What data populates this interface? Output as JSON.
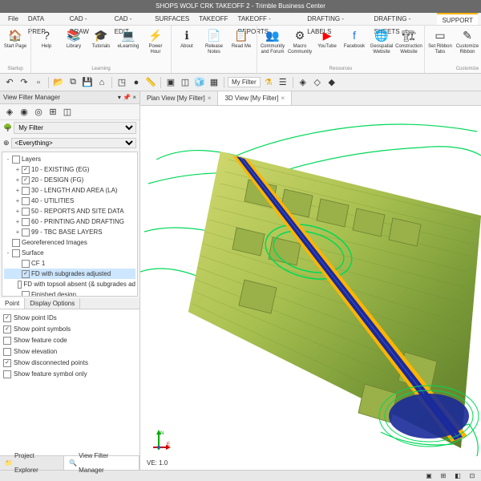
{
  "window": {
    "title": "SHOPS WOLF CRK TAKEOFF 2 - Trimble Business Center"
  },
  "menu": {
    "items": [
      "File",
      "DATA PREP",
      "CAD - DRAW",
      "CAD - EDIT",
      "SURFACES",
      "TAKEOFF",
      "TAKEOFF - REPORTS",
      "DRAFTING - LABELS",
      "DRAFTING - SHEETS",
      "SUPPORT"
    ],
    "active": 9
  },
  "ribbon": {
    "groups": [
      {
        "name": "Startup",
        "buttons": [
          {
            "label": "Start Page",
            "icon": "🏠"
          }
        ]
      },
      {
        "name": "Learning",
        "buttons": [
          {
            "label": "Help",
            "icon": "?"
          },
          {
            "label": "Library",
            "icon": "📚"
          },
          {
            "label": "Tutorials",
            "icon": "🎓"
          },
          {
            "label": "eLearning",
            "icon": "💻"
          },
          {
            "label": "Power Hour",
            "icon": "⚡"
          }
        ]
      },
      {
        "name": "",
        "buttons": [
          {
            "label": "About",
            "icon": "ℹ"
          },
          {
            "label": "Release Notes",
            "icon": "📄"
          },
          {
            "label": "Read Me",
            "icon": "📋"
          }
        ]
      },
      {
        "name": "Resources",
        "buttons": [
          {
            "label": "Community and Forum",
            "icon": "👥"
          },
          {
            "label": "Macro Community",
            "icon": "⚙"
          },
          {
            "label": "YouTube",
            "icon": "▶",
            "cls": "yt"
          },
          {
            "label": "Facebook",
            "icon": "f",
            "cls": "fb"
          },
          {
            "label": "Geospatial Website",
            "icon": "🌐"
          },
          {
            "label": "Construction Website",
            "icon": "🏗"
          }
        ]
      },
      {
        "name": "Customize",
        "buttons": [
          {
            "label": "Set Ribbon Tabs",
            "icon": "▭"
          },
          {
            "label": "Customize Ribbon",
            "icon": "✎"
          },
          {
            "label": "Defi",
            "icon": "▭"
          }
        ]
      }
    ]
  },
  "toolbar": {
    "filter_label": "My Filter"
  },
  "panel": {
    "title": "View Filter Manager",
    "filter_sel": "My Filter",
    "everything": "<Everything>",
    "tree": [
      {
        "label": "Layers",
        "checked": false,
        "indent": 0,
        "exp": "-"
      },
      {
        "label": "10 - EXISTING (EG)",
        "checked": true,
        "indent": 1,
        "exp": "+"
      },
      {
        "label": "20 - DESIGN (FG)",
        "checked": true,
        "indent": 1,
        "exp": "+"
      },
      {
        "label": "30 - LENGTH AND AREA (LA)",
        "checked": false,
        "indent": 1,
        "exp": "+"
      },
      {
        "label": "40 - UTILITIES",
        "checked": false,
        "indent": 1,
        "exp": "+"
      },
      {
        "label": "50 - REPORTS AND SITE DATA",
        "checked": false,
        "indent": 1,
        "exp": "+"
      },
      {
        "label": "60 - PRINTING AND DRAFTING",
        "checked": false,
        "indent": 1,
        "exp": "+"
      },
      {
        "label": "99 - TBC BASE LAYERS",
        "checked": false,
        "indent": 1,
        "exp": "+"
      },
      {
        "label": "Georeferenced Images",
        "checked": false,
        "indent": 0,
        "exp": ""
      },
      {
        "label": "Surface",
        "checked": false,
        "indent": 0,
        "exp": "-"
      },
      {
        "label": "CF 1",
        "checked": false,
        "indent": 1,
        "exp": ""
      },
      {
        "label": "FD with subgrades adjusted",
        "checked": true,
        "indent": 1,
        "exp": "",
        "sel": true
      },
      {
        "label": "FD with topsoil absent (& subgrades ad",
        "checked": false,
        "indent": 1,
        "exp": ""
      },
      {
        "label": "Finished design",
        "checked": false,
        "indent": 1,
        "exp": ""
      },
      {
        "label": "OG with topsoil stripped (& subgrades",
        "checked": false,
        "indent": 1,
        "exp": ""
      },
      {
        "label": "Original ground",
        "checked": false,
        "indent": 1,
        "exp": ""
      }
    ],
    "opt_tabs": [
      "Point",
      "Display Options"
    ],
    "opt_active": 0,
    "options": [
      {
        "label": "Show point IDs",
        "checked": true
      },
      {
        "label": "Show point symbols",
        "checked": true
      },
      {
        "label": "Show feature code",
        "checked": false
      },
      {
        "label": "Show elevation",
        "checked": false
      },
      {
        "label": "Show disconnected points",
        "checked": true
      },
      {
        "label": "Show feature symbol only",
        "checked": false
      }
    ],
    "bottom_tabs": [
      {
        "label": "Project Explorer",
        "icon": "📁"
      },
      {
        "label": "View Filter Manager",
        "icon": "🔍"
      }
    ],
    "bottom_active": 1
  },
  "viewport": {
    "tabs": [
      {
        "label": "Plan View [My Filter]"
      },
      {
        "label": "3D View [My Filter]"
      }
    ],
    "active": 1,
    "ve": "VE: 1.0",
    "colors": {
      "terrain_fill": "#c8d060",
      "terrain_mid": "#8fb040",
      "terrain_dark": "#5a7a30",
      "road": "#1a2a9a",
      "road_edge": "#ffb400",
      "contour": "#00e060",
      "contour_line": "#00c050"
    }
  },
  "compass": {
    "n": "N",
    "e": "E"
  }
}
